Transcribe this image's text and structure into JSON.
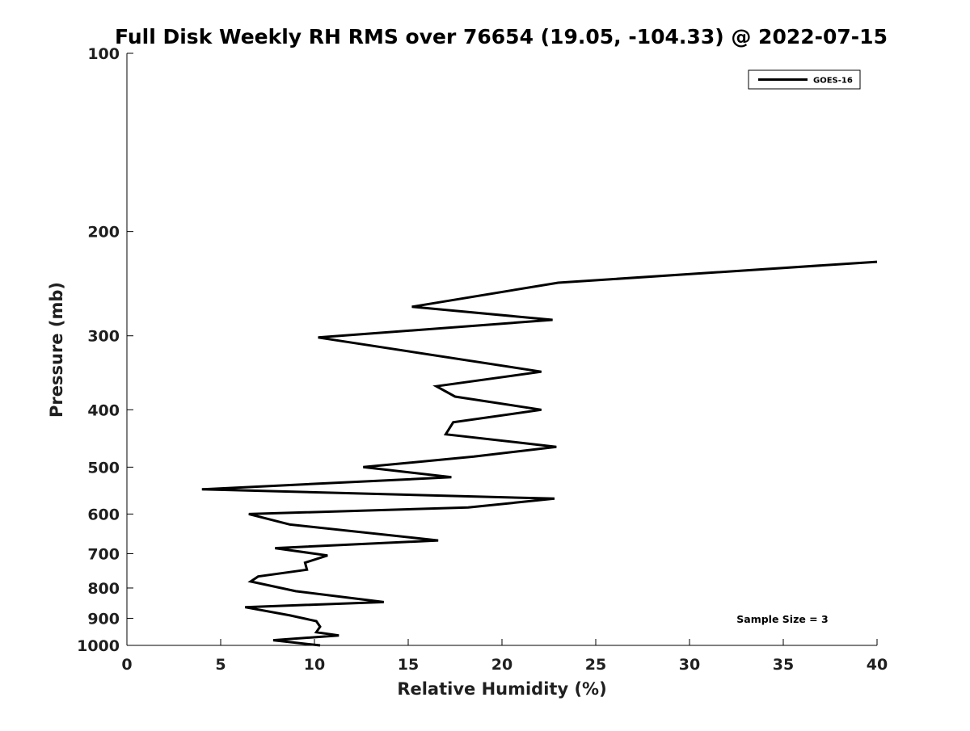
{
  "chart_data": {
    "type": "line",
    "title": "Full Disk Weekly RH RMS over 76654 (19.05, -104.33) @ 2022-07-15",
    "xlabel": "Relative Humidity (%)",
    "ylabel": "Pressure (mb)",
    "xlim": [
      0,
      40
    ],
    "ylim": [
      100,
      1000
    ],
    "yscale": "log",
    "yinverted": true,
    "grid": false,
    "legend_position": "top-right",
    "x_ticks": [
      "0",
      "5",
      "10",
      "15",
      "20",
      "25",
      "30",
      "35",
      "40"
    ],
    "y_ticks": [
      "100",
      "200",
      "300",
      "400",
      "500",
      "600",
      "700",
      "800",
      "900",
      "1000"
    ],
    "series": [
      {
        "name": "GOES-16",
        "color": "#000000",
        "points": [
          {
            "x": 40.0,
            "y": 225
          },
          {
            "x": 23.0,
            "y": 244
          },
          {
            "x": 15.2,
            "y": 268
          },
          {
            "x": 22.7,
            "y": 282
          },
          {
            "x": 10.2,
            "y": 302
          },
          {
            "x": 22.1,
            "y": 345
          },
          {
            "x": 16.5,
            "y": 365
          },
          {
            "x": 17.5,
            "y": 380
          },
          {
            "x": 22.1,
            "y": 400
          },
          {
            "x": 17.4,
            "y": 420
          },
          {
            "x": 17.0,
            "y": 440
          },
          {
            "x": 22.9,
            "y": 462
          },
          {
            "x": 18.5,
            "y": 480
          },
          {
            "x": 12.6,
            "y": 500
          },
          {
            "x": 17.3,
            "y": 520
          },
          {
            "x": 4.0,
            "y": 545
          },
          {
            "x": 22.8,
            "y": 565
          },
          {
            "x": 18.2,
            "y": 585
          },
          {
            "x": 6.5,
            "y": 600
          },
          {
            "x": 8.7,
            "y": 625
          },
          {
            "x": 16.6,
            "y": 665
          },
          {
            "x": 7.9,
            "y": 685
          },
          {
            "x": 10.7,
            "y": 705
          },
          {
            "x": 9.5,
            "y": 725
          },
          {
            "x": 9.6,
            "y": 745
          },
          {
            "x": 7.0,
            "y": 765
          },
          {
            "x": 6.6,
            "y": 780
          },
          {
            "x": 9.0,
            "y": 810
          },
          {
            "x": 13.7,
            "y": 845
          },
          {
            "x": 6.3,
            "y": 862
          },
          {
            "x": 8.7,
            "y": 890
          },
          {
            "x": 10.1,
            "y": 910
          },
          {
            "x": 10.3,
            "y": 930
          },
          {
            "x": 10.1,
            "y": 950
          },
          {
            "x": 11.3,
            "y": 962
          },
          {
            "x": 7.8,
            "y": 980
          },
          {
            "x": 10.3,
            "y": 1000
          }
        ]
      }
    ],
    "annotations": [
      {
        "text": "Sample Size = 3",
        "position": "bottom-right"
      }
    ]
  }
}
